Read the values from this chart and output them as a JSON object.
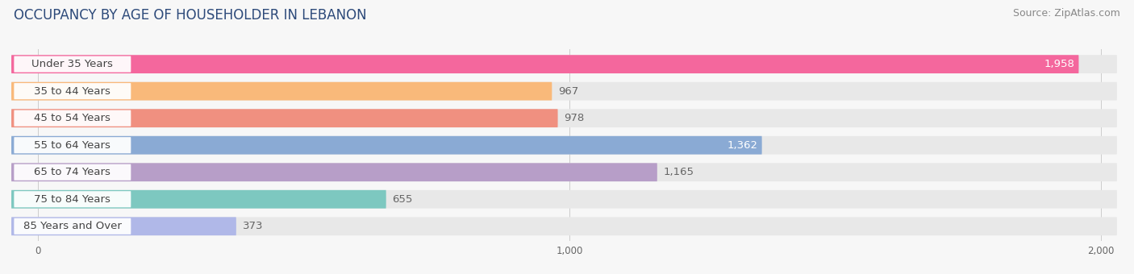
{
  "title": "OCCUPANCY BY AGE OF HOUSEHOLDER IN LEBANON",
  "source": "Source: ZipAtlas.com",
  "categories": [
    "Under 35 Years",
    "35 to 44 Years",
    "45 to 54 Years",
    "55 to 64 Years",
    "65 to 74 Years",
    "75 to 84 Years",
    "85 Years and Over"
  ],
  "values": [
    1958,
    967,
    978,
    1362,
    1165,
    655,
    373
  ],
  "bar_colors": [
    "#f4679d",
    "#f9b97a",
    "#f09080",
    "#8aaad4",
    "#b79ec8",
    "#7dc8c0",
    "#b0b8e8"
  ],
  "bar_bg_colors": [
    "#eeeeee",
    "#eeeeee",
    "#eeeeee",
    "#eeeeee",
    "#eeeeee",
    "#eeeeee",
    "#eeeeee"
  ],
  "value_label_colors": [
    "#ffffff",
    "#666666",
    "#666666",
    "#ffffff",
    "#666666",
    "#666666",
    "#666666"
  ],
  "xlim_data": [
    0,
    2000
  ],
  "xticks": [
    0,
    1000,
    2000
  ],
  "title_fontsize": 12,
  "source_fontsize": 9,
  "cat_label_fontsize": 9.5,
  "val_label_fontsize": 9.5,
  "bar_height": 0.68,
  "background_color": "#f7f7f7",
  "white_label_bg": "#ffffff",
  "label_text_color": "#444444",
  "title_color": "#2d4a7a"
}
